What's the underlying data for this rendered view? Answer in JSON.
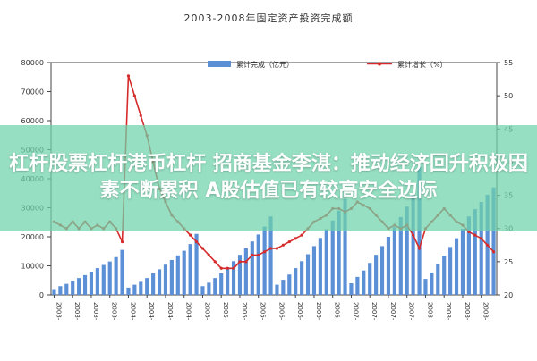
{
  "chart_data": {
    "type": "bar",
    "title": "2003-2008年固定资产投资完成额",
    "categories": [
      "2003",
      "2003-2",
      "2003-3",
      "2003-4",
      "2003-5",
      "2003-6",
      "2003-7",
      "2003-8",
      "2003-9",
      "2003-10",
      "2003-11",
      "2003-12",
      "2004",
      "2004-2",
      "2004-3",
      "2004-4",
      "2004-5",
      "2004-6",
      "2004-7",
      "2004-8",
      "2004-9",
      "2004-10",
      "2004-11",
      "2004-12",
      "2005",
      "2005-2",
      "2005-3",
      "2005-4",
      "2005-5",
      "2005-6",
      "2005-7",
      "2005-8",
      "2005-9",
      "2005-10",
      "2005-11",
      "2005-12",
      "2006",
      "2006-2",
      "2006-3",
      "2006-4",
      "2006-5",
      "2006-6",
      "2006-7",
      "2006-8",
      "2006-9",
      "2006-10",
      "2006-11",
      "2006-12",
      "2007",
      "2007-2",
      "2007-3",
      "2007-4",
      "2007-5",
      "2007-6",
      "2007-7",
      "2007-8",
      "2007-9",
      "2007-10",
      "2007-11",
      "2007-12",
      "2008",
      "2008-2",
      "2008-3",
      "2008-4",
      "2008-5",
      "2008-6",
      "2008-7",
      "2008-8",
      "2008-9",
      "2008-10",
      "2008-11",
      "2008-12"
    ],
    "x_tick_labels": [
      "2003-",
      "2003-",
      "2003-",
      "2003-",
      "2004-",
      "2004-",
      "2004-",
      "2004-",
      "2005-",
      "2005-",
      "2005-",
      "2005-",
      "2006-",
      "2006-",
      "2006-",
      "2006-",
      "2007-",
      "2007-",
      "2007-",
      "2007-",
      "2008-",
      "2008-",
      "2008-",
      "2008-"
    ],
    "series": [
      {
        "name": "累计完成（亿元）",
        "axis": "left",
        "color": "#5b8fd6",
        "values": [
          2000,
          3000,
          3800,
          4800,
          5800,
          6800,
          8000,
          9200,
          10300,
          11500,
          13000,
          15500,
          2500,
          3500,
          4500,
          5800,
          7400,
          8800,
          10400,
          12000,
          13600,
          15200,
          17500,
          21000,
          3000,
          4200,
          5800,
          7400,
          9500,
          11600,
          13800,
          16000,
          18400,
          20800,
          23500,
          27000,
          3500,
          5200,
          7000,
          9200,
          11600,
          14000,
          16800,
          19600,
          22600,
          25600,
          29000,
          33000,
          4000,
          6200,
          8400,
          11000,
          13800,
          16800,
          20000,
          23300,
          26800,
          30400,
          34600,
          44000,
          5500,
          7700,
          10500,
          13500,
          16500,
          19500,
          22800,
          27000,
          29500,
          32000,
          34500,
          37000
        ]
      },
      {
        "name": "累计增长（%）",
        "axis": "right",
        "color": "#d62b2b",
        "values": [
          31,
          30.5,
          30,
          31,
          30,
          31,
          30,
          30.5,
          30,
          31,
          30,
          28,
          53,
          50,
          47,
          44,
          40,
          36,
          34,
          32,
          31,
          30,
          29,
          28,
          27,
          26,
          25,
          24,
          24,
          24,
          25,
          25,
          26,
          26,
          26.5,
          27,
          27,
          27.5,
          28,
          28.5,
          29,
          30,
          31,
          31.5,
          32,
          33,
          33,
          32.5,
          33,
          34,
          33.5,
          33,
          32,
          31,
          30,
          30.5,
          30,
          30.5,
          29,
          27,
          30,
          31,
          32,
          33,
          32,
          31,
          30.5,
          29.5,
          29,
          28.5,
          27.5,
          26.5
        ]
      }
    ],
    "y_left": {
      "ylim": [
        0,
        80000
      ],
      "ticks": [
        "0",
        "10000",
        "20000",
        "30000",
        "40000",
        "50000",
        "60000",
        "70000",
        "80000"
      ]
    },
    "y_right": {
      "ylim": [
        20,
        55
      ],
      "ticks": [
        "20",
        "25",
        "30",
        "35",
        "40",
        "45",
        "50",
        "55"
      ]
    },
    "legend_position": "top",
    "grid": false
  },
  "banner": {
    "text": "杠杆股票杠杆港币杠杆 招商基金李湛：推动经济回升积极因素不断累积 A股估值已有较高安全边际"
  },
  "colors": {
    "bars": "#5b8fd6",
    "line": "#d62b2b",
    "banner": "#6ed2aa"
  }
}
